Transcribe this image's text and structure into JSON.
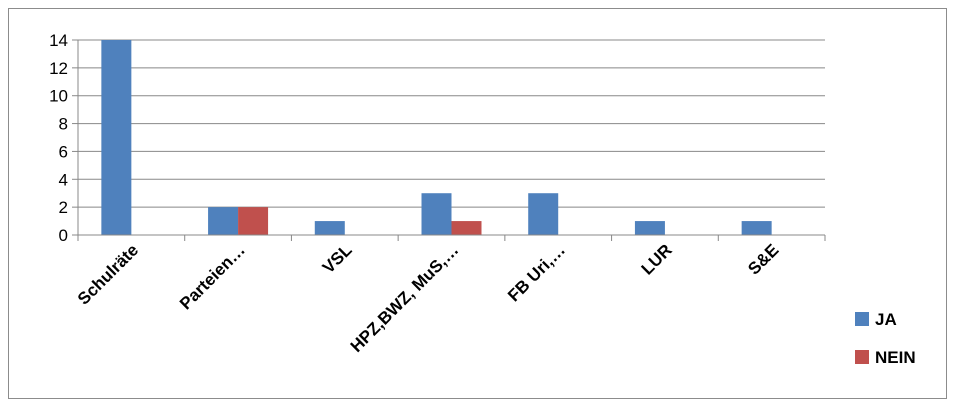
{
  "chart_data": {
    "type": "bar",
    "categories": [
      "Schulräte",
      "Parteien…",
      "VSL",
      "HPZ,BWZ, MuS,…",
      "FB Uri,…",
      "LUR",
      "S&E"
    ],
    "series": [
      {
        "name": "JA",
        "color": "#4f81bd",
        "values": [
          14,
          2,
          1,
          3,
          3,
          1,
          1
        ]
      },
      {
        "name": "NEIN",
        "color": "#c0504d",
        "values": [
          0,
          2,
          0,
          1,
          0,
          0,
          0
        ]
      }
    ],
    "y_ticks": [
      "0",
      "2",
      "4",
      "6",
      "8",
      "10",
      "12",
      "14"
    ],
    "ylim": [
      0,
      14
    ],
    "grid": true,
    "legend_position": "right"
  }
}
